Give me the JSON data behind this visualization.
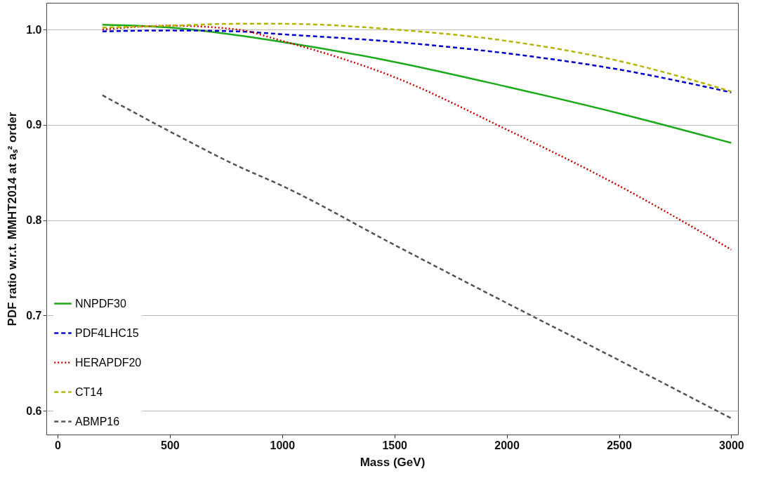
{
  "chart_data": {
    "type": "line",
    "xlabel": "Mass (GeV)",
    "ylabel": "PDF ratio w.r.t. MMHT2014 at aₛ² order",
    "x": [
      200,
      500,
      800,
      1000,
      1500,
      2000,
      2500,
      3000
    ],
    "xlim": [
      -50,
      3030
    ],
    "xticks": [
      0,
      500,
      1000,
      1500,
      2000,
      2500,
      3000
    ],
    "ylim": [
      0.575,
      1.028
    ],
    "yticks": [
      0.6,
      0.7,
      0.8,
      0.9,
      {
        "value": 1,
        "label": "1.0"
      }
    ],
    "grid": "y",
    "legend": "bottom left",
    "series": [
      {
        "name": "NNPDF30",
        "color": "#1aaa1a",
        "line_style": "solid",
        "values": [
          1.005,
          1.002,
          0.994,
          0.987,
          0.966,
          0.94,
          0.912,
          0.881
        ]
      },
      {
        "name": "PDF4LHC15",
        "color": "#0000cc",
        "line_style": "dashed",
        "values": [
          0.998,
          0.999,
          0.998,
          0.995,
          0.987,
          0.975,
          0.958,
          0.934
        ]
      },
      {
        "name": "HERAPDF20",
        "color": "#cc0000",
        "line_style": "dotted",
        "values": [
          1.0,
          1.004,
          1.0,
          0.988,
          0.95,
          0.895,
          0.836,
          0.769
        ]
      },
      {
        "name": "CT14",
        "color": "#b5b500",
        "line_style": "dashed",
        "values": [
          1.002,
          1.004,
          1.006,
          1.006,
          1.0,
          0.988,
          0.967,
          0.935
        ]
      },
      {
        "name": "ABMP16",
        "color": "#555555",
        "line_style": "dashed",
        "values": [
          0.931,
          0.893,
          0.857,
          0.836,
          0.774,
          0.713,
          0.653,
          0.592
        ]
      }
    ]
  }
}
